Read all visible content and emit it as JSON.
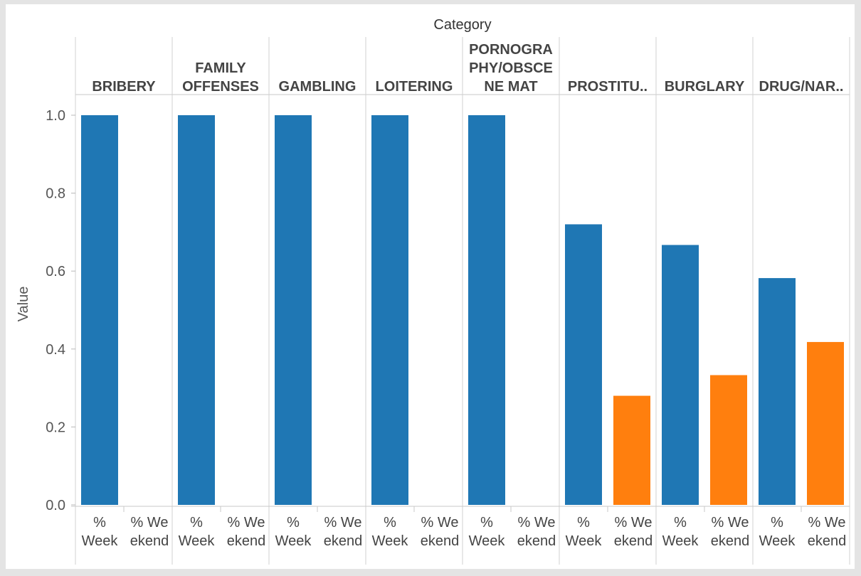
{
  "chart_data": {
    "type": "bar",
    "column_header": "Category",
    "ylabel": "Value",
    "ylim": [
      0,
      1.05
    ],
    "yticks": [
      "0.0",
      "0.2",
      "0.4",
      "0.6",
      "0.8",
      "1.0"
    ],
    "ytick_values": [
      0.0,
      0.2,
      0.4,
      0.6,
      0.8,
      1.0
    ],
    "series_labels": [
      [
        "%",
        "Week"
      ],
      [
        "% We",
        "ekend"
      ]
    ],
    "colors": {
      "% Week": "#1f77b4",
      "% Weekend": "#ff7f0e"
    },
    "categories": [
      {
        "label_lines": [
          "BRIBERY"
        ],
        "values": [
          1.0,
          0.0
        ]
      },
      {
        "label_lines": [
          "FAMILY",
          "OFFENSES"
        ],
        "values": [
          1.0,
          0.0
        ]
      },
      {
        "label_lines": [
          "GAMBLING"
        ],
        "values": [
          1.0,
          0.0
        ]
      },
      {
        "label_lines": [
          "LOITERING"
        ],
        "values": [
          1.0,
          0.0
        ]
      },
      {
        "label_lines": [
          "PORNOGRA",
          "PHY/OBSCE",
          "NE MAT"
        ],
        "values": [
          1.0,
          0.0
        ]
      },
      {
        "label_lines": [
          "PROSTITU.."
        ],
        "values": [
          0.72,
          0.28
        ]
      },
      {
        "label_lines": [
          "BURGLARY"
        ],
        "values": [
          0.667,
          0.333
        ]
      },
      {
        "label_lines": [
          "DRUG/NAR.."
        ],
        "values": [
          0.582,
          0.418
        ]
      }
    ]
  }
}
